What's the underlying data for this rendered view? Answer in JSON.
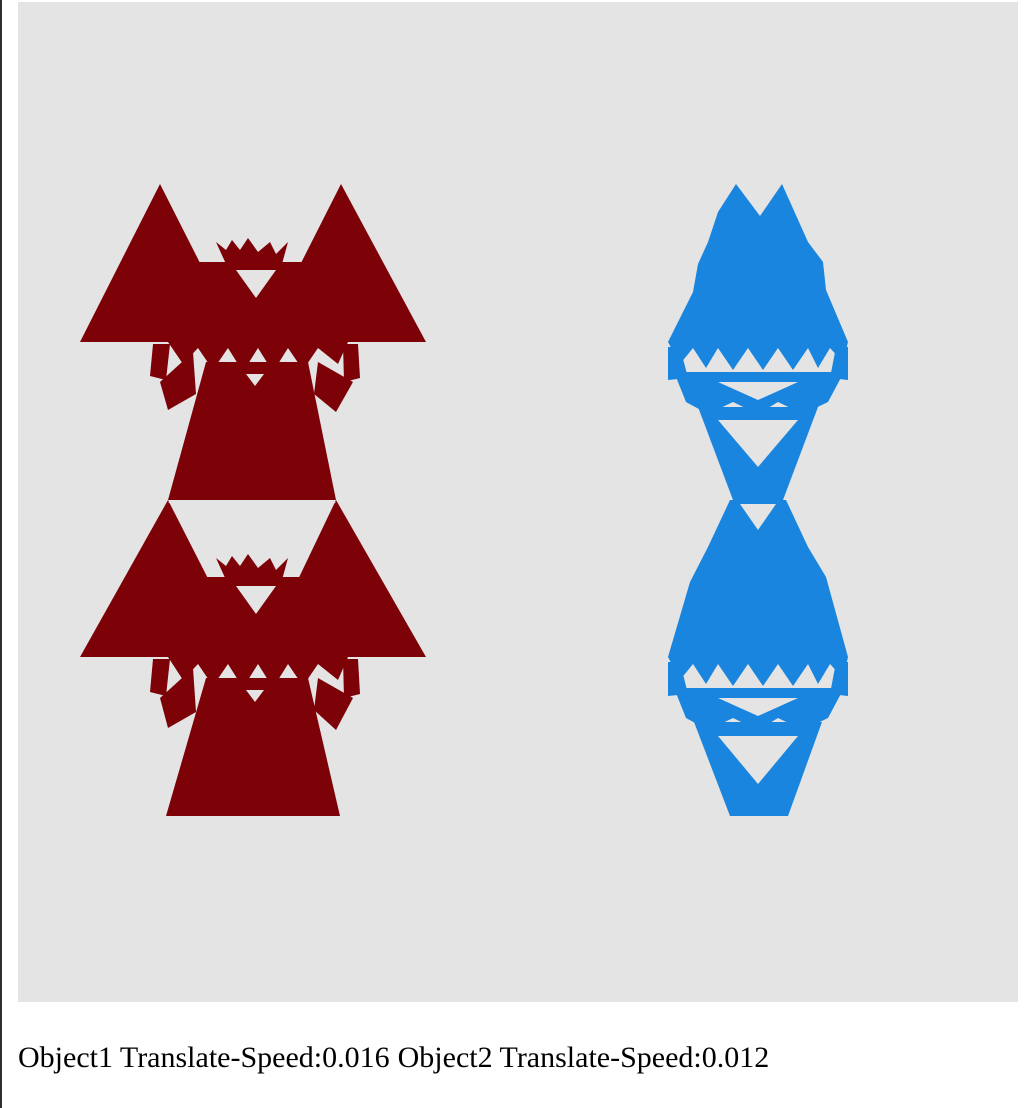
{
  "canvas": {
    "background": "#e4e4e4"
  },
  "objects": [
    {
      "label": "Object1 Translate-Speed:0.016",
      "color": "#7d0208",
      "shape": "sierpinski-like-fractal"
    },
    {
      "label": "Object2 Translate-Speed:0.012",
      "color": "#1985de",
      "shape": "sierpinski-like-fractal"
    }
  ]
}
